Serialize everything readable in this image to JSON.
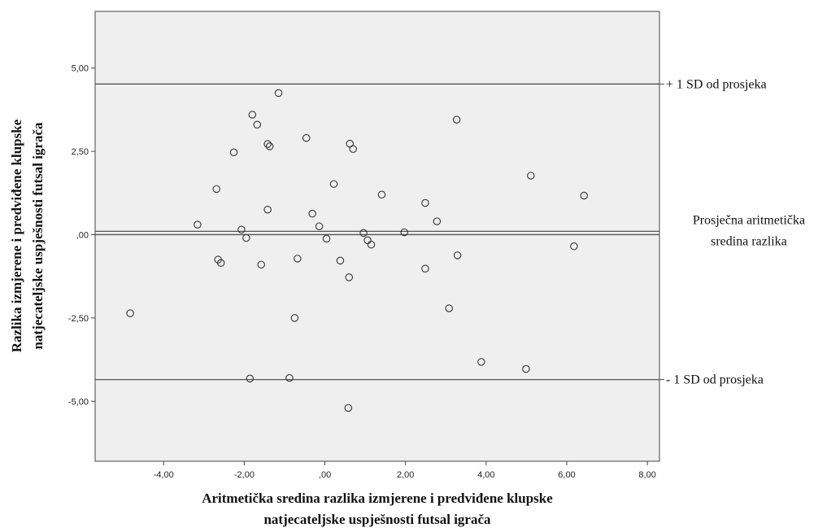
{
  "chart_data": {
    "type": "scatter",
    "xlabel": [
      "Aritmetička sredina razlika izmjerene i predviđene klupske",
      "natjecateljske uspješnosti futsal igrača"
    ],
    "ylabel": [
      "Razlika izmjerene i predviđene klupske",
      "natjecateljske uspješnosti futsal igrača"
    ],
    "xlim": [
      -5.7,
      8.3
    ],
    "ylim": [
      -6.8,
      6.7
    ],
    "x_ticks": [
      -4,
      -2,
      0,
      2,
      4,
      6,
      8
    ],
    "x_tick_labels": [
      "-4,00",
      "-2,00",
      ",00",
      "2,00",
      "4,00",
      "6,00",
      "8,00"
    ],
    "y_ticks": [
      5,
      2.5,
      0,
      -2.5,
      -5
    ],
    "y_tick_labels": [
      "5,00",
      "2,50",
      ",00",
      "-2,50",
      "-5,00"
    ],
    "grid": false,
    "reference_lines": [
      {
        "y": 4.52,
        "label": [
          "+ 1 SD od prosjeka"
        ]
      },
      {
        "y": 0.1,
        "label": [
          "Prosječna aritmetička",
          "sredina razlika"
        ]
      },
      {
        "y": 0.0,
        "label": []
      },
      {
        "y": -4.35,
        "label": [
          "- 1 SD od prosjeka"
        ]
      }
    ],
    "points": [
      {
        "x": -4.83,
        "y": -2.36
      },
      {
        "x": -3.16,
        "y": 0.3
      },
      {
        "x": -2.69,
        "y": 1.37
      },
      {
        "x": -2.65,
        "y": -0.75
      },
      {
        "x": -2.58,
        "y": -0.85
      },
      {
        "x": -2.26,
        "y": 2.47
      },
      {
        "x": -2.07,
        "y": 0.15
      },
      {
        "x": -1.95,
        "y": -0.1
      },
      {
        "x": -1.86,
        "y": -4.32
      },
      {
        "x": -1.8,
        "y": 3.6
      },
      {
        "x": -1.68,
        "y": 3.3
      },
      {
        "x": -1.58,
        "y": -0.9
      },
      {
        "x": -1.42,
        "y": 2.72
      },
      {
        "x": -1.37,
        "y": 2.65
      },
      {
        "x": -1.42,
        "y": 0.75
      },
      {
        "x": -1.15,
        "y": 4.25
      },
      {
        "x": -0.88,
        "y": -4.3
      },
      {
        "x": -0.75,
        "y": -2.5
      },
      {
        "x": -0.68,
        "y": -0.72
      },
      {
        "x": -0.46,
        "y": 2.9
      },
      {
        "x": -0.31,
        "y": 0.63
      },
      {
        "x": -0.14,
        "y": 0.25
      },
      {
        "x": 0.04,
        "y": -0.12
      },
      {
        "x": 0.22,
        "y": 1.52
      },
      {
        "x": 0.38,
        "y": -0.78
      },
      {
        "x": 0.58,
        "y": -5.2
      },
      {
        "x": 0.6,
        "y": -1.28
      },
      {
        "x": 0.62,
        "y": 2.73
      },
      {
        "x": 0.7,
        "y": 2.57
      },
      {
        "x": 0.96,
        "y": 0.05
      },
      {
        "x": 1.06,
        "y": -0.17
      },
      {
        "x": 1.15,
        "y": -0.3
      },
      {
        "x": 1.41,
        "y": 1.2
      },
      {
        "x": 1.97,
        "y": 0.07
      },
      {
        "x": 2.49,
        "y": 0.95
      },
      {
        "x": 2.49,
        "y": -1.02
      },
      {
        "x": 2.78,
        "y": 0.4
      },
      {
        "x": 3.08,
        "y": -2.21
      },
      {
        "x": 3.27,
        "y": 3.45
      },
      {
        "x": 3.29,
        "y": -0.62
      },
      {
        "x": 3.88,
        "y": -3.82
      },
      {
        "x": 4.99,
        "y": -4.03
      },
      {
        "x": 5.11,
        "y": 1.77
      },
      {
        "x": 6.18,
        "y": -0.35
      },
      {
        "x": 6.43,
        "y": 1.17
      }
    ]
  }
}
